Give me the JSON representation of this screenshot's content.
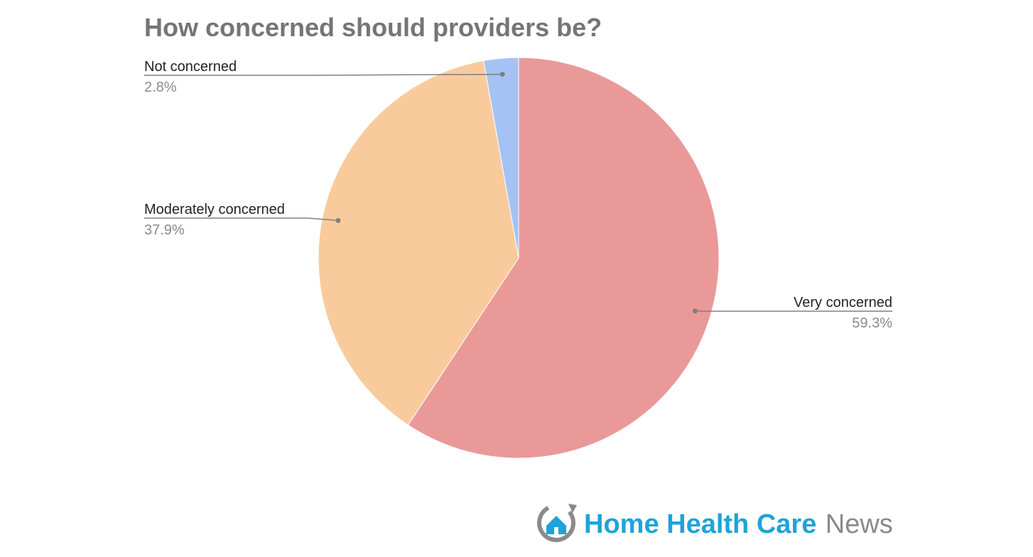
{
  "chart_data": {
    "type": "pie",
    "title": "How concerned should providers be?",
    "slices": [
      {
        "label": "Very concerned",
        "value": 59.3,
        "display": "59.3%",
        "color": "#ea9999"
      },
      {
        "label": "Moderately concerned",
        "value": 37.9,
        "display": "37.9%",
        "color": "#f9cb9c"
      },
      {
        "label": "Not concerned",
        "value": 2.8,
        "display": "2.8%",
        "color": "#a4c2f4"
      }
    ],
    "start_angle_deg": 0,
    "direction": "clockwise",
    "legend": "none",
    "labels": "outside-with-leader-lines"
  },
  "logo": {
    "brand_primary": "Home Health Care",
    "brand_secondary": "News",
    "primary_color": "#1fa3d8",
    "secondary_color": "#8a8a8a",
    "icon": "house-with-arrow-icon"
  },
  "colors": {
    "title": "#757575",
    "leader_line": "#808080",
    "label": "#222222",
    "value": "#8a8a8a"
  }
}
